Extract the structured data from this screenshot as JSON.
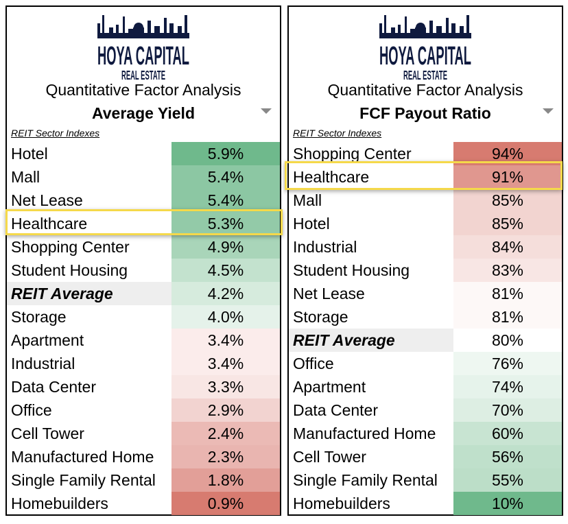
{
  "logo": {
    "line1": "HOYA CAPITAL",
    "line2": "REAL ESTATE",
    "color": "#0f1a3f"
  },
  "panels": [
    {
      "subtitle": "Quantitative Factor Analysis",
      "metric": "Average Yield",
      "section_label": "REIT Sector Indexes",
      "highlighted": "Healthcare",
      "rows": [
        {
          "label": "Hotel",
          "value": "5.9%",
          "color": "#6fb98c"
        },
        {
          "label": "Mall",
          "value": "5.4%",
          "color": "#8cc7a3"
        },
        {
          "label": "Net Lease",
          "value": "5.4%",
          "color": "#8cc7a3"
        },
        {
          "label": "Healthcare",
          "value": "5.3%",
          "color": "#93caa8"
        },
        {
          "label": "Shopping Center",
          "value": "4.9%",
          "color": "#a9d5b9"
        },
        {
          "label": "Student Housing",
          "value": "4.5%",
          "color": "#c3e2ce"
        },
        {
          "label": "REIT Average",
          "value": "4.2%",
          "color": "#d6ebdd",
          "average": true
        },
        {
          "label": "Storage",
          "value": "4.0%",
          "color": "#e5f2ea"
        },
        {
          "label": "Apartment",
          "value": "3.4%",
          "color": "#fbeceb"
        },
        {
          "label": "Industrial",
          "value": "3.4%",
          "color": "#fbeceb"
        },
        {
          "label": "Data Center",
          "value": "3.3%",
          "color": "#f8e6e4"
        },
        {
          "label": "Office",
          "value": "2.9%",
          "color": "#f2d3d0"
        },
        {
          "label": "Cell Tower",
          "value": "2.4%",
          "color": "#ebbab5"
        },
        {
          "label": "Manufactured Home",
          "value": "2.3%",
          "color": "#e9b5b0"
        },
        {
          "label": "Single Family Rental",
          "value": "1.8%",
          "color": "#e29f98"
        },
        {
          "label": "Homebuilders",
          "value": "0.9%",
          "color": "#d77b70"
        }
      ]
    },
    {
      "subtitle": "Quantitative Factor Analysis",
      "metric": "FCF Payout Ratio",
      "section_label": "REIT Sector Indexes",
      "highlighted": "Healthcare",
      "rows": [
        {
          "label": "Shopping Center",
          "value": "94%",
          "color": "#d77b70"
        },
        {
          "label": "Healthcare",
          "value": "91%",
          "color": "#e0978f"
        },
        {
          "label": "Mall",
          "value": "85%",
          "color": "#f2d4d0"
        },
        {
          "label": "Hotel",
          "value": "85%",
          "color": "#f2d4d0"
        },
        {
          "label": "Industrial",
          "value": "84%",
          "color": "#f5dedb"
        },
        {
          "label": "Student Housing",
          "value": "83%",
          "color": "#f8e6e4"
        },
        {
          "label": "Net Lease",
          "value": "81%",
          "color": "#fdf8f7"
        },
        {
          "label": "Storage",
          "value": "81%",
          "color": "#fdf8f7"
        },
        {
          "label": "REIT Average",
          "value": "80%",
          "color": "#ffffff",
          "average": true
        },
        {
          "label": "Office",
          "value": "76%",
          "color": "#eef7f1"
        },
        {
          "label": "Apartment",
          "value": "74%",
          "color": "#e6f3eb"
        },
        {
          "label": "Data Center",
          "value": "70%",
          "color": "#ddeee3"
        },
        {
          "label": "Manufactured Home",
          "value": "60%",
          "color": "#c8e4d2"
        },
        {
          "label": "Cell Tower",
          "value": "56%",
          "color": "#bfe0cb"
        },
        {
          "label": "Single Family Rental",
          "value": "55%",
          "color": "#bcdec8"
        },
        {
          "label": "Homebuilders",
          "value": "10%",
          "color": "#6fb98c"
        }
      ]
    }
  ],
  "highlight_color": "#f5d94a"
}
